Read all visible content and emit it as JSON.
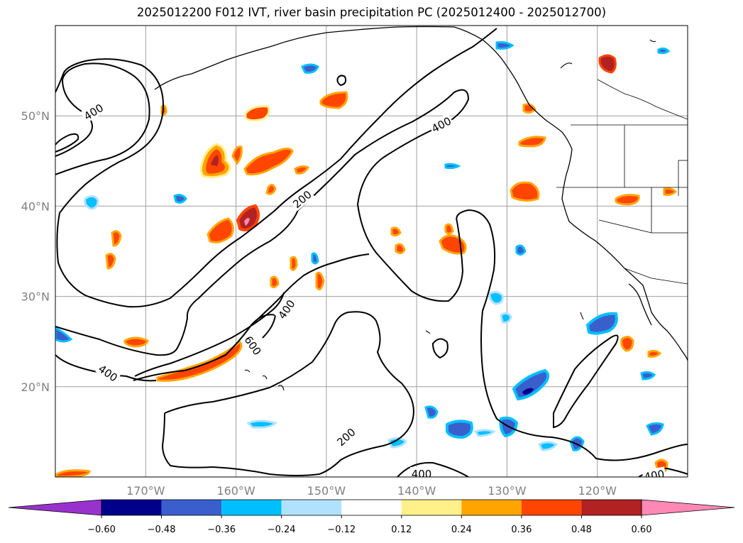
{
  "title": "2025012200 F012 IVT, river basin precipitation PC (2025012400 - 2025012700)",
  "map": {
    "lat_labels": [
      "50°N",
      "40°N",
      "30°N",
      "20°N"
    ],
    "lat_values": [
      50,
      40,
      30,
      20
    ],
    "lon_labels": [
      "170°W",
      "160°W",
      "150°W",
      "140°W",
      "130°W",
      "120°W"
    ],
    "lon_values": [
      -170,
      -160,
      -150,
      -140,
      -130,
      -120
    ],
    "lon_range": [
      -180,
      -110
    ],
    "lat_range": [
      10,
      60
    ],
    "grid": true,
    "ivt_contour_labels": [
      "400",
      "400",
      "200",
      "400",
      "600",
      "400",
      "200",
      "400",
      "400"
    ],
    "colors": {
      "ivt_contour": "#000000",
      "coastline": "#000000",
      "grid": "#a0a0a0",
      "positive_pc": [
        "#fff089",
        "#ffa500",
        "#ff4500",
        "#b22222",
        "#ff88b4"
      ],
      "negative_pc": [
        "#b0e2ff",
        "#00bfff",
        "#3a5fcd",
        "#00008b",
        "#9932cc"
      ]
    }
  },
  "colorbar": {
    "tick_labels": [
      "−0.60",
      "−0.48",
      "−0.36",
      "−0.24",
      "−0.12",
      "0.12",
      "0.24",
      "0.36",
      "0.48",
      "0.60"
    ],
    "segment_colors": [
      "#9932cc",
      "#00008b",
      "#3a5fcd",
      "#00bfff",
      "#b0e2ff",
      "#ffffff",
      "#fff089",
      "#ffa500",
      "#ff4500",
      "#b22222",
      "#ff88b4",
      "#ff88b4"
    ],
    "extend": "both"
  }
}
